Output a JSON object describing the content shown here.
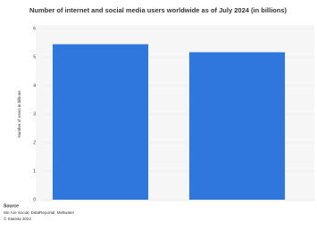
{
  "chart_data": {
    "type": "bar",
    "title": "Number of internet and social media users worldwide as of July 2024 (in billions)",
    "y_label": "Number of users in billions",
    "categories": [
      null,
      null
    ],
    "values": [
      5.45,
      5.17
    ],
    "color": "#2f76dd",
    "ylim": [
      0,
      6
    ],
    "yticks": [
      0,
      1,
      2,
      3,
      4,
      5,
      6
    ],
    "grid": true,
    "source_heading": "Source",
    "source": "We Are Social; DataReportal; Meltwater",
    "copyright": "© Statista 2024"
  }
}
